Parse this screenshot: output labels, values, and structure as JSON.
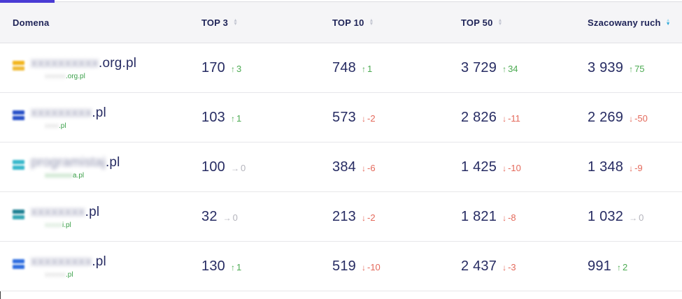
{
  "header": {
    "active_tab_indicator_color": "#4a3bd4",
    "columns": [
      {
        "key": "domain",
        "label": "Domena",
        "sortable": false,
        "sort": "none"
      },
      {
        "key": "top3",
        "label": "TOP 3",
        "sortable": true,
        "sort": "none"
      },
      {
        "key": "top10",
        "label": "TOP 10",
        "sortable": true,
        "sort": "none"
      },
      {
        "key": "top50",
        "label": "TOP 50",
        "sortable": true,
        "sort": "none"
      },
      {
        "key": "traffic",
        "label": "Szacowany ruch",
        "sortable": true,
        "sort": "desc"
      }
    ]
  },
  "icons": {
    "up": "↑",
    "down": "↓",
    "neutral": "→",
    "sort_asc": "▲",
    "sort_desc": "▼"
  },
  "colors": {
    "positive": "#4cab52",
    "negative": "#e4695b",
    "neutral": "#b4b4bc",
    "number": "#272c63",
    "header_text": "#1e2357",
    "sub_link": "#3ca04a",
    "sort_inactive": "#c4c7d2",
    "sort_active": "#2fa9d8",
    "tab_indicator": "#4a3bd4"
  },
  "rows": [
    {
      "domain": {
        "redacted": true,
        "placeholder": "xxxxxxxxxx",
        "suffix": ".org.pl",
        "sub_placeholder": "xxxxxx",
        "sub_suffix": ".org.pl",
        "favicon_colors": [
          "#f2b51d",
          "#f0bc3a"
        ],
        "sub_prefix_color": "#bdbdbd"
      },
      "metrics": {
        "top3": {
          "value": "170",
          "change": "3",
          "direction": "up"
        },
        "top10": {
          "value": "748",
          "change": "1",
          "direction": "up"
        },
        "top50": {
          "value": "3 729",
          "change": "34",
          "direction": "up"
        },
        "traffic": {
          "value": "3 939",
          "change": "75",
          "direction": "up"
        }
      }
    },
    {
      "domain": {
        "redacted": true,
        "placeholder": "xxxxxxxxx",
        "suffix": ".pl",
        "sub_placeholder": "xxxx",
        "sub_suffix": ".pl",
        "favicon_colors": [
          "#2750c8",
          "#2750c8"
        ],
        "sub_prefix_color": "#bdbdbd"
      },
      "metrics": {
        "top3": {
          "value": "103",
          "change": "1",
          "direction": "up"
        },
        "top10": {
          "value": "573",
          "change": "-2",
          "direction": "down"
        },
        "top50": {
          "value": "2 826",
          "change": "-11",
          "direction": "down"
        },
        "traffic": {
          "value": "2 269",
          "change": "-50",
          "direction": "down"
        }
      }
    },
    {
      "domain": {
        "redacted": true,
        "placeholder": "programistaj",
        "suffix": ".pl",
        "sub_placeholder": "xxxxxxxx",
        "sub_suffix": "a.pl",
        "favicon_colors": [
          "#38b8cb",
          "#38b8cb"
        ],
        "sub_prefix_color": "#5faf68"
      },
      "metrics": {
        "top3": {
          "value": "100",
          "change": "0",
          "direction": "neutral"
        },
        "top10": {
          "value": "384",
          "change": "-6",
          "direction": "down"
        },
        "top50": {
          "value": "1 425",
          "change": "-10",
          "direction": "down"
        },
        "traffic": {
          "value": "1 348",
          "change": "-9",
          "direction": "down"
        }
      }
    },
    {
      "domain": {
        "redacted": true,
        "placeholder": "xxxxxxxx",
        "suffix": ".pl",
        "sub_placeholder": "xxxxx",
        "sub_suffix": "i.pl",
        "favicon_colors": [
          "#1d7f92",
          "#35a7b5"
        ],
        "sub_prefix_color": "#9fc9a5"
      },
      "metrics": {
        "top3": {
          "value": "32",
          "change": "0",
          "direction": "neutral"
        },
        "top10": {
          "value": "213",
          "change": "-2",
          "direction": "down"
        },
        "top50": {
          "value": "1 821",
          "change": "-8",
          "direction": "down"
        },
        "traffic": {
          "value": "1 032",
          "change": "0",
          "direction": "neutral"
        }
      }
    },
    {
      "domain": {
        "redacted": true,
        "placeholder": "xxxxxxxxx",
        "suffix": ".pl",
        "sub_placeholder": "xxxxxx",
        "sub_suffix": ".pl",
        "favicon_colors": [
          "#2e6ee0",
          "#2e6ee0"
        ],
        "sub_prefix_color": "#bdbdbd"
      },
      "metrics": {
        "top3": {
          "value": "130",
          "change": "1",
          "direction": "up"
        },
        "top10": {
          "value": "519",
          "change": "-10",
          "direction": "down"
        },
        "top50": {
          "value": "2 437",
          "change": "-3",
          "direction": "down"
        },
        "traffic": {
          "value": "991",
          "change": "2",
          "direction": "up"
        }
      }
    }
  ]
}
